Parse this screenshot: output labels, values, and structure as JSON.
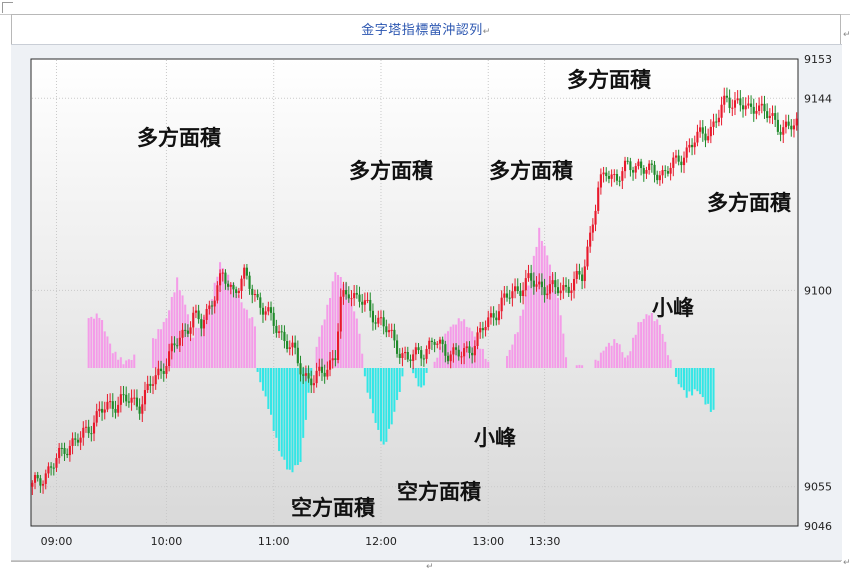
{
  "document": {
    "title": "金字塔指標當沖認列",
    "paragraph_mark": "↵"
  },
  "chart_data": {
    "type": "candlestick+histogram",
    "title": "金字塔指標當沖認列",
    "y_axis_right": {
      "ticks": [
        "9153",
        "9144",
        "9100",
        "9055",
        "9046"
      ],
      "range": [
        9046,
        9153
      ],
      "grid": [
        9144,
        9100,
        9055
      ]
    },
    "x_axis": {
      "ticks": [
        "09:00",
        "10:00",
        "11:00",
        "12:00",
        "13:00",
        "13:30"
      ]
    },
    "grid": true,
    "colors": {
      "up": "#e8192c",
      "down": "#1f8a2a",
      "positive_area": "#f49be8",
      "negative_area": "#33e6e6",
      "background_top": "#ffffff",
      "background_bottom": "#dcdcdc"
    },
    "price_path": [
      [
        0,
        9055
      ],
      [
        8,
        9060
      ],
      [
        12,
        9064
      ],
      [
        18,
        9066
      ],
      [
        25,
        9072
      ],
      [
        33,
        9075
      ],
      [
        40,
        9074
      ],
      [
        46,
        9080
      ],
      [
        52,
        9086
      ],
      [
        57,
        9091
      ],
      [
        60,
        9094
      ],
      [
        63,
        9092
      ],
      [
        67,
        9098
      ],
      [
        71,
        9103
      ],
      [
        75,
        9100
      ],
      [
        79,
        9103
      ],
      [
        83,
        9099
      ],
      [
        88,
        9094
      ],
      [
        93,
        9090
      ],
      [
        98,
        9085
      ],
      [
        101,
        9081
      ],
      [
        105,
        9079
      ],
      [
        109,
        9082
      ],
      [
        113,
        9085
      ],
      [
        115,
        9097
      ],
      [
        118,
        9100
      ],
      [
        122,
        9098
      ],
      [
        126,
        9095
      ],
      [
        130,
        9093
      ],
      [
        135,
        9088
      ],
      [
        140,
        9084
      ],
      [
        145,
        9086
      ],
      [
        150,
        9088
      ],
      [
        155,
        9086
      ],
      [
        160,
        9085
      ],
      [
        165,
        9088
      ],
      [
        170,
        9093
      ],
      [
        175,
        9097
      ],
      [
        180,
        9100
      ],
      [
        185,
        9102
      ],
      [
        190,
        9101
      ],
      [
        195,
        9100
      ],
      [
        200,
        9101
      ],
      [
        205,
        9103
      ],
      [
        208,
        9113
      ],
      [
        211,
        9123
      ],
      [
        214,
        9127
      ],
      [
        218,
        9126
      ],
      [
        222,
        9128
      ],
      [
        226,
        9129
      ],
      [
        230,
        9127
      ],
      [
        235,
        9127
      ],
      [
        240,
        9129
      ],
      [
        245,
        9133
      ],
      [
        250,
        9136
      ],
      [
        253,
        9137
      ],
      [
        256,
        9140
      ],
      [
        259,
        9144
      ],
      [
        263,
        9143
      ],
      [
        267,
        9141
      ],
      [
        270,
        9143
      ],
      [
        274,
        9140
      ],
      [
        278,
        9138
      ],
      [
        282,
        9137
      ],
      [
        285,
        9138
      ]
    ],
    "histogram": [
      {
        "label": "多方面積",
        "from": 20,
        "to": 38,
        "profile": [
          [
            20,
            0.0
          ],
          [
            21,
            0.45
          ],
          [
            25,
            0.48
          ],
          [
            30,
            0.15
          ],
          [
            34,
            0.05
          ],
          [
            38,
            0.1
          ]
        ]
      },
      {
        "label": "多方面積",
        "from": 45,
        "to": 60,
        "profile": [
          [
            45,
            0.25
          ],
          [
            50,
            0.45
          ],
          [
            54,
            0.8
          ],
          [
            58,
            0.5
          ],
          [
            60,
            0.0
          ]
        ]
      },
      {
        "label": "多方面積",
        "from": 60,
        "to": 84,
        "profile": [
          [
            60,
            0.3
          ],
          [
            66,
            0.55
          ],
          [
            70,
            0.95
          ],
          [
            75,
            0.75
          ],
          [
            79,
            0.55
          ],
          [
            83,
            0.4
          ],
          [
            84,
            0.0
          ]
        ]
      },
      {
        "label": "空方面積",
        "from": 84,
        "to": 104,
        "profile": [
          [
            84,
            -0.05
          ],
          [
            88,
            -0.35
          ],
          [
            92,
            -0.75
          ],
          [
            96,
            -0.95
          ],
          [
            100,
            -0.85
          ],
          [
            104,
            -0.05
          ]
        ]
      },
      {
        "label": "多方面積",
        "from": 106,
        "to": 124,
        "profile": [
          [
            106,
            0.2
          ],
          [
            110,
            0.55
          ],
          [
            113,
            0.88
          ],
          [
            117,
            0.75
          ],
          [
            121,
            0.45
          ],
          [
            124,
            0.0
          ]
        ]
      },
      {
        "label": "空方面積",
        "from": 124,
        "to": 138,
        "profile": [
          [
            124,
            -0.1
          ],
          [
            128,
            -0.5
          ],
          [
            131,
            -0.72
          ],
          [
            134,
            -0.5
          ],
          [
            138,
            -0.1
          ]
        ]
      },
      {
        "label": "小峰",
        "from": 142,
        "to": 148,
        "profile": [
          [
            142,
            -0.05
          ],
          [
            145,
            -0.2
          ],
          [
            148,
            0.0
          ]
        ]
      },
      {
        "label": "多方面積",
        "from": 150,
        "to": 170,
        "profile": [
          [
            150,
            0.05
          ],
          [
            155,
            0.35
          ],
          [
            160,
            0.45
          ],
          [
            165,
            0.3
          ],
          [
            170,
            0.05
          ]
        ]
      },
      {
        "label": "多方面積",
        "from": 177,
        "to": 199,
        "profile": [
          [
            177,
            0.1
          ],
          [
            181,
            0.35
          ],
          [
            185,
            0.75
          ],
          [
            189,
            1.25
          ],
          [
            193,
            0.95
          ],
          [
            197,
            0.5
          ],
          [
            199,
            0.1
          ]
        ]
      },
      {
        "label": "小峰",
        "from": 202,
        "to": 206,
        "profile": [
          [
            202,
            0.0
          ],
          [
            204,
            0.05
          ],
          [
            206,
            0.0
          ]
        ]
      },
      {
        "label": "小峰",
        "from": 210,
        "to": 222,
        "profile": [
          [
            210,
            0.05
          ],
          [
            214,
            0.2
          ],
          [
            218,
            0.25
          ],
          [
            222,
            0.05
          ]
        ]
      },
      {
        "label": "多方面積",
        "from": 222,
        "to": 238,
        "profile": [
          [
            222,
            0.1
          ],
          [
            226,
            0.4
          ],
          [
            230,
            0.5
          ],
          [
            234,
            0.4
          ],
          [
            238,
            0.05
          ]
        ]
      },
      {
        "label": "空方面積",
        "from": 240,
        "to": 254,
        "profile": [
          [
            240,
            -0.1
          ],
          [
            244,
            -0.25
          ],
          [
            248,
            -0.2
          ],
          [
            252,
            -0.35
          ],
          [
            254,
            -0.4
          ]
        ]
      }
    ],
    "annotations": [
      {
        "text": "多方面積",
        "id": "bull-1"
      },
      {
        "text": "多方面積",
        "id": "bull-2"
      },
      {
        "text": "多方面積",
        "id": "bull-3"
      },
      {
        "text": "多方面積",
        "id": "bull-4"
      },
      {
        "text": "多方面積",
        "id": "bull-5"
      },
      {
        "text": "空方面積",
        "id": "bear-1"
      },
      {
        "text": "空方面積",
        "id": "bear-2"
      },
      {
        "text": "小峰",
        "id": "small-1"
      },
      {
        "text": "小峰",
        "id": "small-2"
      }
    ]
  }
}
